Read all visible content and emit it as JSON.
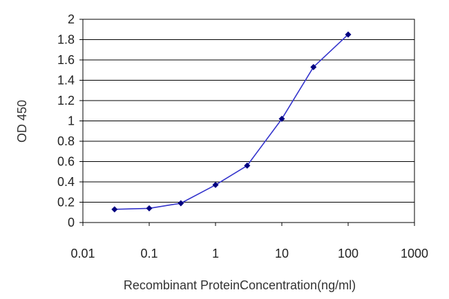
{
  "chart_data": {
    "type": "line",
    "xscale": "log",
    "xlabel": "Recombinant ProteinConcentration(ng/ml)",
    "ylabel": "OD 450",
    "xlim": [
      0.01,
      1000
    ],
    "ylim": [
      0,
      2
    ],
    "xticks": [
      0.01,
      0.1,
      1,
      10,
      100,
      1000
    ],
    "xtick_labels": [
      "0.01",
      "0.1",
      "1",
      "10",
      "100",
      "1000"
    ],
    "yticks": [
      0,
      0.2,
      0.4,
      0.6,
      0.8,
      1,
      1.2,
      1.4,
      1.6,
      1.8,
      2
    ],
    "ytick_labels": [
      "0",
      "0.2",
      "0.4",
      "0.6",
      "0.8",
      "1",
      "1.2",
      "1.4",
      "1.6",
      "1.8",
      "2"
    ],
    "grid": "horizontal",
    "series": [
      {
        "x": [
          0.03,
          0.1,
          0.3,
          1,
          3,
          10,
          30,
          100
        ],
        "y": [
          0.13,
          0.14,
          0.19,
          0.37,
          0.56,
          1.02,
          1.53,
          1.85
        ]
      }
    ],
    "colors": {
      "line": "#3333cc",
      "marker": "#000080",
      "grid": "#000000"
    }
  }
}
